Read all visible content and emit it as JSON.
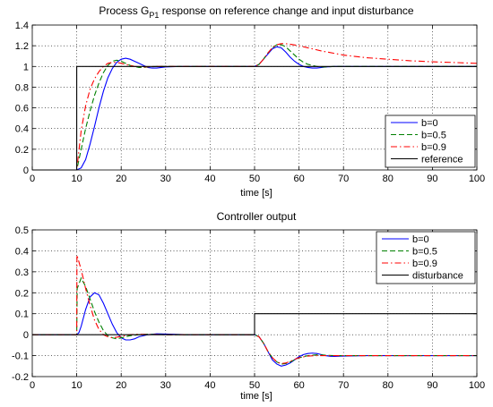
{
  "chart_data": [
    {
      "type": "line",
      "title_main": "Process G",
      "title_sub": "P1",
      "title_rest": " response on reference change and input disturbance",
      "xlabel": "time [s]",
      "ylabel": "",
      "xlim": [
        0,
        100
      ],
      "ylim": [
        0,
        1.4
      ],
      "xticks": [
        0,
        10,
        20,
        30,
        40,
        50,
        60,
        70,
        80,
        90,
        100
      ],
      "yticks": [
        0,
        0.2,
        0.4,
        0.6,
        0.8,
        1,
        1.2,
        1.4
      ],
      "xtick_labels": [
        "0",
        "10",
        "20",
        "30",
        "40",
        "50",
        "60",
        "70",
        "80",
        "90",
        "100"
      ],
      "ytick_labels": [
        "0",
        "0.2",
        "0.4",
        "0.6",
        "0.8",
        "1",
        "1.2",
        "1.4"
      ],
      "grid": true,
      "legend_position": "bottom-right",
      "series": [
        {
          "name": "b=0",
          "color": "#0000ff",
          "dash": "solid",
          "x": [
            0,
            10,
            11,
            12,
            13,
            14,
            15,
            16,
            17,
            18,
            19,
            20,
            21,
            22,
            23,
            24,
            25,
            26,
            27,
            28,
            30,
            33,
            36,
            40,
            45,
            50,
            51,
            52,
            53,
            54,
            55,
            56,
            57,
            58,
            59,
            60,
            61,
            62,
            63,
            64,
            65,
            66,
            68,
            70,
            75,
            80,
            90,
            100
          ],
          "y": [
            0,
            0,
            0.02,
            0.1,
            0.25,
            0.42,
            0.6,
            0.76,
            0.89,
            0.98,
            1.04,
            1.07,
            1.08,
            1.07,
            1.05,
            1.03,
            1.01,
            0.99,
            0.985,
            0.985,
            0.995,
            1.0,
            1.0,
            1.0,
            1.0,
            1.0,
            1.02,
            1.07,
            1.12,
            1.17,
            1.19,
            1.18,
            1.14,
            1.09,
            1.05,
            1.02,
            1.0,
            0.99,
            0.985,
            0.985,
            0.99,
            0.995,
            1.0,
            1.0,
            1.0,
            1.0,
            1.0,
            1.0
          ]
        },
        {
          "name": "b=0.5",
          "color": "#008000",
          "dash": "dashed",
          "x": [
            0,
            10,
            11,
            12,
            13,
            14,
            15,
            16,
            17,
            18,
            19,
            20,
            21,
            22,
            23,
            24,
            25,
            26,
            28,
            30,
            35,
            40,
            45,
            50,
            51,
            52,
            53,
            54,
            55,
            56,
            57,
            58,
            59,
            60,
            61,
            62,
            63,
            64,
            65,
            66,
            68,
            70,
            75,
            80,
            90,
            100
          ],
          "y": [
            0,
            0,
            0.2,
            0.4,
            0.57,
            0.72,
            0.84,
            0.94,
            1.01,
            1.05,
            1.06,
            1.05,
            1.03,
            1.01,
            1.0,
            0.99,
            0.99,
            0.995,
            1.0,
            1.0,
            1.0,
            1.0,
            1.0,
            1.0,
            1.02,
            1.07,
            1.13,
            1.18,
            1.21,
            1.21,
            1.19,
            1.15,
            1.11,
            1.07,
            1.04,
            1.02,
            1.01,
            1.0,
            0.995,
            0.995,
            1.0,
            1.0,
            1.0,
            1.0,
            1.0,
            1.0
          ]
        },
        {
          "name": "b=0.9",
          "color": "#ff0000",
          "dash": "dashdot",
          "x": [
            0,
            10,
            11,
            12,
            13,
            14,
            15,
            16,
            17,
            18,
            19,
            20,
            21,
            22,
            23,
            25,
            28,
            30,
            35,
            40,
            45,
            50,
            51,
            52,
            53,
            54,
            55,
            56,
            57,
            58,
            60,
            62,
            65,
            70,
            75,
            80,
            85,
            90,
            95,
            100
          ],
          "y": [
            0,
            0,
            0.38,
            0.62,
            0.78,
            0.88,
            0.95,
            1.0,
            1.03,
            1.04,
            1.04,
            1.03,
            1.02,
            1.01,
            1.0,
            0.995,
            1.0,
            1.0,
            1.0,
            1.0,
            1.0,
            1.0,
            1.02,
            1.07,
            1.13,
            1.18,
            1.21,
            1.22,
            1.22,
            1.215,
            1.2,
            1.18,
            1.15,
            1.11,
            1.085,
            1.07,
            1.055,
            1.045,
            1.038,
            1.03
          ]
        },
        {
          "name": "reference",
          "color": "#000000",
          "dash": "solid",
          "x": [
            0,
            10,
            10,
            100
          ],
          "y": [
            0,
            0,
            1,
            1
          ]
        }
      ]
    },
    {
      "type": "line",
      "title": "Controller output",
      "xlabel": "time [s]",
      "ylabel": "",
      "xlim": [
        0,
        100
      ],
      "ylim": [
        -0.2,
        0.5
      ],
      "xticks": [
        0,
        10,
        20,
        30,
        40,
        50,
        60,
        70,
        80,
        90,
        100
      ],
      "yticks": [
        -0.2,
        -0.1,
        0,
        0.1,
        0.2,
        0.3,
        0.4,
        0.5
      ],
      "xtick_labels": [
        "0",
        "10",
        "20",
        "30",
        "40",
        "50",
        "60",
        "70",
        "80",
        "90",
        "100"
      ],
      "ytick_labels": [
        "-0.2",
        "-0.1",
        "0",
        "0.1",
        "0.2",
        "0.3",
        "0.4",
        "0.5"
      ],
      "grid": true,
      "legend_position": "top-right",
      "series": [
        {
          "name": "b=0",
          "color": "#0000ff",
          "dash": "solid",
          "x": [
            0,
            10,
            10.5,
            11,
            12,
            13,
            14,
            15,
            16,
            17,
            18,
            19,
            20,
            21,
            22,
            23,
            24,
            26,
            28,
            30,
            35,
            40,
            45,
            50,
            51,
            52,
            53,
            54,
            55,
            56,
            57,
            58,
            59,
            60,
            61,
            62,
            63,
            64,
            65,
            66,
            67,
            68,
            70,
            75,
            80,
            90,
            100
          ],
          "y": [
            0,
            0,
            0.01,
            0.04,
            0.12,
            0.18,
            0.2,
            0.19,
            0.15,
            0.1,
            0.05,
            0.01,
            -0.015,
            -0.025,
            -0.025,
            -0.02,
            -0.01,
            0.0,
            0.004,
            0.003,
            0.0,
            0.0,
            0.0,
            0.0,
            -0.01,
            -0.04,
            -0.08,
            -0.12,
            -0.14,
            -0.15,
            -0.145,
            -0.135,
            -0.12,
            -0.105,
            -0.095,
            -0.09,
            -0.088,
            -0.09,
            -0.095,
            -0.1,
            -0.103,
            -0.104,
            -0.102,
            -0.1,
            -0.1,
            -0.1,
            -0.1
          ]
        },
        {
          "name": "b=0.5",
          "color": "#008000",
          "dash": "dashed",
          "x": [
            0,
            10,
            10.1,
            11,
            12,
            13,
            14,
            15,
            16,
            17,
            18,
            19,
            20,
            22,
            24,
            26,
            30,
            40,
            50,
            51,
            52,
            53,
            54,
            55,
            56,
            57,
            58,
            59,
            60,
            62,
            64,
            66,
            68,
            70,
            75,
            80,
            90,
            100
          ],
          "y": [
            0,
            0,
            0.22,
            0.27,
            0.23,
            0.17,
            0.11,
            0.06,
            0.02,
            -0.005,
            -0.015,
            -0.02,
            -0.015,
            -0.005,
            0.0,
            0.002,
            0.0,
            0.0,
            0.0,
            -0.01,
            -0.04,
            -0.08,
            -0.11,
            -0.13,
            -0.14,
            -0.138,
            -0.13,
            -0.12,
            -0.11,
            -0.1,
            -0.096,
            -0.098,
            -0.1,
            -0.1,
            -0.1,
            -0.1,
            -0.1,
            -0.1
          ]
        },
        {
          "name": "b=0.9",
          "color": "#ff0000",
          "dash": "dashdot",
          "x": [
            0,
            10,
            10.05,
            11,
            12,
            13,
            14,
            15,
            16,
            17,
            18,
            19,
            20,
            22,
            24,
            26,
            30,
            40,
            50,
            51,
            52,
            53,
            54,
            55,
            56,
            57,
            58,
            59,
            60,
            62,
            64,
            66,
            68,
            70,
            75,
            80,
            90,
            100
          ],
          "y": [
            0,
            0,
            0.38,
            0.31,
            0.22,
            0.14,
            0.07,
            0.025,
            0.0,
            -0.01,
            -0.015,
            -0.012,
            -0.008,
            0.0,
            0.002,
            0.001,
            0.0,
            0.0,
            0.0,
            -0.01,
            -0.04,
            -0.08,
            -0.11,
            -0.13,
            -0.138,
            -0.135,
            -0.128,
            -0.118,
            -0.11,
            -0.102,
            -0.1,
            -0.1,
            -0.1,
            -0.1,
            -0.1,
            -0.1,
            -0.1,
            -0.1
          ]
        },
        {
          "name": "disturbance",
          "color": "#000000",
          "dash": "solid",
          "x": [
            0,
            50,
            50,
            100
          ],
          "y": [
            0,
            0,
            0.1,
            0.1
          ]
        }
      ]
    }
  ]
}
